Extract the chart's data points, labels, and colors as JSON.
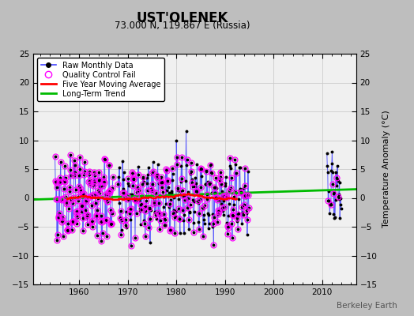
{
  "title": "UST'OLENEK",
  "subtitle": "73.000 N, 119.867 E (Russia)",
  "ylabel": "Temperature Anomaly (°C)",
  "credit": "Berkeley Earth",
  "xlim": [
    1950.5,
    2017
  ],
  "ylim": [
    -15,
    25
  ],
  "yticks": [
    -15,
    -10,
    -5,
    0,
    5,
    10,
    15,
    20,
    25
  ],
  "xticks": [
    1960,
    1970,
    1980,
    1990,
    2000,
    2010
  ],
  "bg_color": "#bebebe",
  "plot_bg_color": "#f0f0f0",
  "raw_line_color": "#4444ff",
  "raw_dot_color": "#000000",
  "qc_color": "#ff00ff",
  "moving_avg_color": "#ff0000",
  "trend_color": "#00bb00",
  "trend_x": [
    1950,
    2017
  ],
  "trend_y": [
    -0.3,
    1.5
  ]
}
